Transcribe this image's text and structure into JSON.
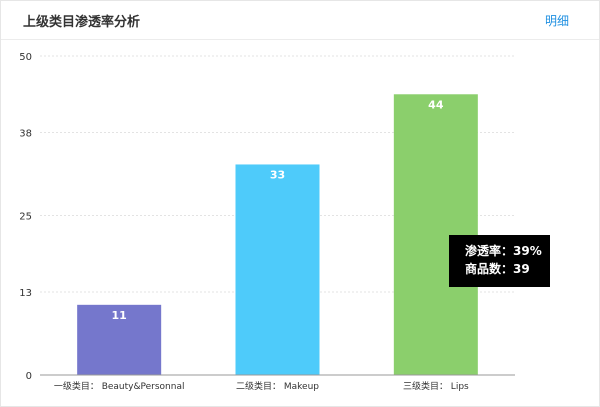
{
  "header": {
    "title": "上级类目渗透率分析",
    "detail_link": "明细"
  },
  "chart_data": {
    "type": "bar",
    "categories": [
      "一级类目： Beauty&Personnal",
      "二级类目： Makeup",
      "三级类目： Lips"
    ],
    "values": [
      11,
      33,
      44
    ],
    "colors": [
      "#7577cc",
      "#4ecbfa",
      "#8bcf6c"
    ],
    "ylim": [
      0,
      50
    ],
    "yticks": [
      0,
      13,
      25,
      38,
      50
    ],
    "grid": true
  },
  "tooltip": {
    "line1": "渗透率：39%",
    "line2": "商品数：39"
  }
}
